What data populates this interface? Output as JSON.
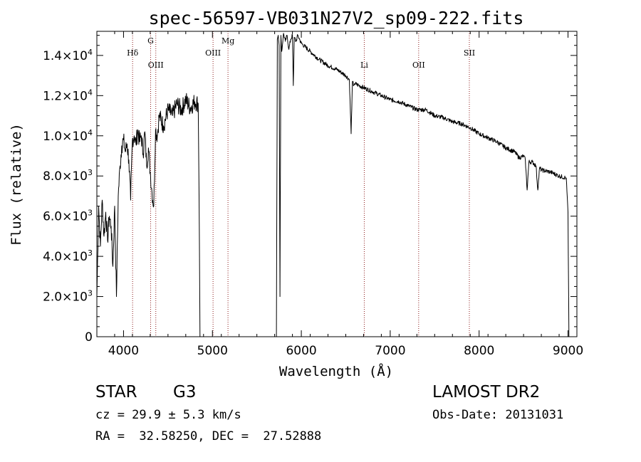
{
  "chart_data": {
    "type": "line",
    "title": "spec-56597-VB031N27V2_sp09-222.fits",
    "xlabel": "Wavelength (Å)",
    "ylabel": "Flux (relative)",
    "xlim": [
      3700,
      9100
    ],
    "ylim": [
      0,
      15200
    ],
    "x_ticks": [
      4000,
      5000,
      6000,
      7000,
      8000,
      9000
    ],
    "x_tick_labels": [
      "4000",
      "5000",
      "6000",
      "7000",
      "8000",
      "9000"
    ],
    "y_ticks": [
      0,
      2000,
      4000,
      6000,
      8000,
      10000,
      12000,
      14000
    ],
    "y_tick_labels": [
      {
        "mant": "0",
        "exp": ""
      },
      {
        "mant": "2.0×10",
        "exp": "3"
      },
      {
        "mant": "4.0×10",
        "exp": "3"
      },
      {
        "mant": "6.0×10",
        "exp": "3"
      },
      {
        "mant": "8.0×10",
        "exp": "3"
      },
      {
        "mant": "1.0×10",
        "exp": "4"
      },
      {
        "mant": "1.2×10",
        "exp": "4"
      },
      {
        "mant": "1.4×10",
        "exp": "4"
      }
    ],
    "grid": false,
    "spectral_lines": [
      {
        "label": "Hδ",
        "wavelength": 4102,
        "row": 1
      },
      {
        "label": "G",
        "wavelength": 4305,
        "row": 0
      },
      {
        "label": "OIII",
        "wavelength": 4363,
        "row": 2
      },
      {
        "label": "OIII",
        "wavelength": 5007,
        "row": 1
      },
      {
        "label": "Mg",
        "wavelength": 5175,
        "row": 0
      },
      {
        "label": "Li",
        "wavelength": 6708,
        "row": 2
      },
      {
        "label": "OII",
        "wavelength": 7320,
        "row": 2
      },
      {
        "label": "SII",
        "wavelength": 7890,
        "row": 1
      }
    ],
    "series": [
      {
        "segments": [
          {
            "x": [
              3700,
              3720,
              3740,
              3760,
              3780,
              3800,
              3820,
              3840,
              3860,
              3880,
              3900,
              3920,
              3940,
              3960,
              3980,
              4000,
              4020,
              4040,
              4060,
              4080,
              4100,
              4120,
              4140,
              4160,
              4180,
              4200,
              4220,
              4240,
              4260,
              4280,
              4300,
              4320,
              4340,
              4360,
              4380,
              4400,
              4450,
              4500,
              4550,
              4600,
              4650,
              4700,
              4750,
              4800,
              4840,
              4850,
              4860
            ],
            "y": [
              2000,
              6500,
              4500,
              6800,
              5000,
              6200,
              4800,
              6000,
              5500,
              3500,
              6500,
              2000,
              7000,
              8500,
              9500,
              9800,
              9200,
              9600,
              8800,
              6800,
              9800,
              10000,
              9600,
              10300,
              9700,
              10000,
              9100,
              10200,
              8500,
              9400,
              8200,
              7200,
              6500,
              10300,
              10000,
              11000,
              10500,
              11300,
              11000,
              11600,
              11300,
              11800,
              11400,
              11700,
              11600,
              7000,
              0
            ]
          },
          {
            "x": [
              5720,
              5730,
              5740,
              5750,
              5760,
              5770,
              5780,
              5800,
              5820,
              5840,
              5860,
              5880,
              5900,
              5910,
              5920,
              5940,
              5960,
              5980,
              6000,
              6100,
              6200,
              6300,
              6400,
              6500,
              6540,
              6560,
              6575,
              6590,
              6600,
              6650,
              6700,
              6800,
              6900,
              7000,
              7100,
              7200,
              7300,
              7400,
              7500,
              7600,
              7700,
              7800,
              7900,
              8000,
              8100,
              8200,
              8300,
              8400,
              8450,
              8500,
              8520,
              8540,
              8560,
              8600,
              8640,
              8660,
              8680,
              8700,
              8800,
              8900,
              8980,
              9000,
              9010
            ],
            "y": [
              0,
              14800,
              15000,
              14500,
              2000,
              15000,
              14200,
              15100,
              14700,
              15000,
              14300,
              14800,
              15000,
              12500,
              14900,
              14700,
              15000,
              14800,
              14600,
              14200,
              13800,
              13500,
              13300,
              13000,
              12800,
              10100,
              12700,
              12500,
              12600,
              12500,
              12400,
              12200,
              12000,
              11800,
              11700,
              11500,
              11300,
              11300,
              11000,
              10900,
              10700,
              10600,
              10400,
              10100,
              9900,
              9700,
              9400,
              9200,
              8900,
              9000,
              8800,
              7300,
              8700,
              8700,
              8500,
              7300,
              8400,
              8300,
              8200,
              8000,
              7900,
              6200,
              0
            ]
          }
        ]
      }
    ]
  },
  "info": {
    "object_class": "STAR",
    "object_subclass": "G3",
    "survey": "LAMOST DR2",
    "redshift_line": "cz = 29.9 ± 5.3 km/s",
    "obs_date": "Obs-Date: 20131031",
    "coordinates": "RA =  32.58250, DEC =  27.52888"
  },
  "colors": {
    "axis": "#000000",
    "spectrum": "#000000",
    "line_markers": "#8b1a1a"
  }
}
